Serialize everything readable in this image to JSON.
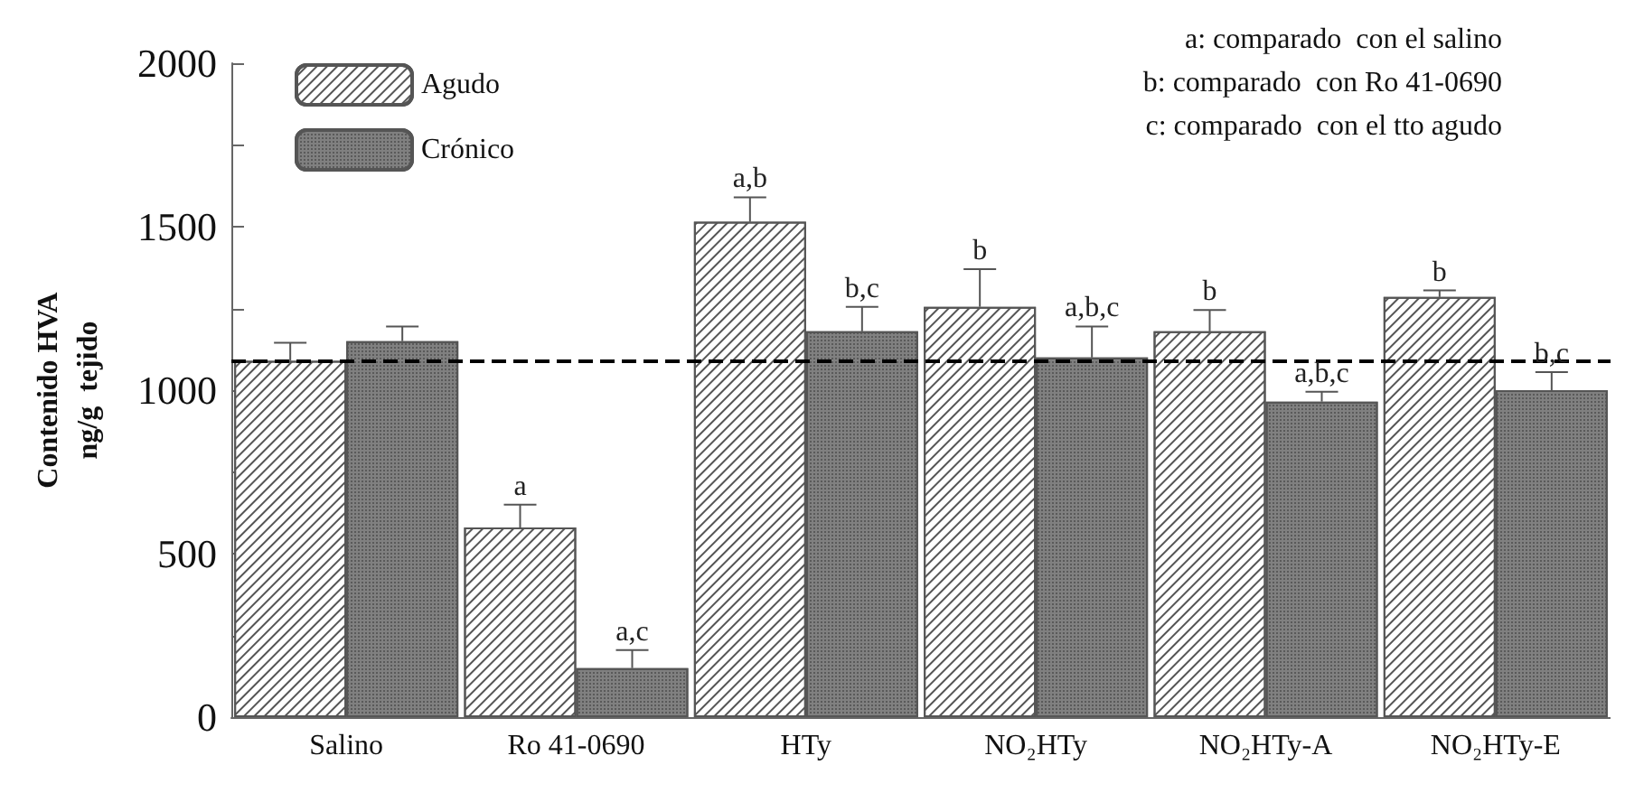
{
  "chart_data": {
    "type": "bar",
    "ylabel": "Contenido HVA\nng/g  tejido",
    "categories": [
      "Salino",
      "Ro 41-0690",
      "HTy",
      "NO₂HTy",
      "NO₂HTy-A",
      "NO₂HTy-E"
    ],
    "series": [
      {
        "name": "Agudo",
        "color": "#ffffff",
        "values": [
          1090,
          580,
          1515,
          1255,
          1180,
          1285
        ],
        "errors": [
          [
            1090,
            1145
          ],
          [
            580,
            650
          ],
          [
            1515,
            1590
          ],
          [
            1255,
            1370
          ],
          [
            1180,
            1245
          ],
          [
            1285,
            1305
          ]
        ],
        "value_labels": [
          null,
          "a",
          "a,b",
          "b",
          "b",
          "b"
        ]
      },
      {
        "name": "Crónico",
        "color": "#808080",
        "values": [
          1150,
          150,
          1180,
          1100,
          965,
          1000
        ],
        "errors": [
          [
            1150,
            1195
          ],
          [
            150,
            205
          ],
          [
            1180,
            1255
          ],
          [
            1100,
            1195
          ],
          [
            965,
            995
          ],
          [
            1000,
            1055
          ]
        ],
        "value_labels": [
          null,
          "a,c",
          "b,c",
          "a,b,c",
          "a,b,c",
          "b,c"
        ]
      }
    ],
    "ylim": [
      0,
      2000
    ],
    "yticks": [
      0,
      {
        "value": 250,
        "label": null
      },
      500,
      {
        "value": 750,
        "label": null
      },
      1000,
      {
        "value": 1250,
        "label": null
      },
      1500,
      {
        "value": 1750,
        "label": null
      },
      2000
    ],
    "ref_lines": [
      {
        "axis": "y",
        "value": 1090,
        "color": "#000000",
        "line_style": "dashed"
      }
    ],
    "annotations": [
      "a: comparado  con el salino",
      "b: comparado  con Ro 41-0690",
      "c: comparado  con el tto agudo"
    ],
    "legend": "top left",
    "grid": false
  }
}
